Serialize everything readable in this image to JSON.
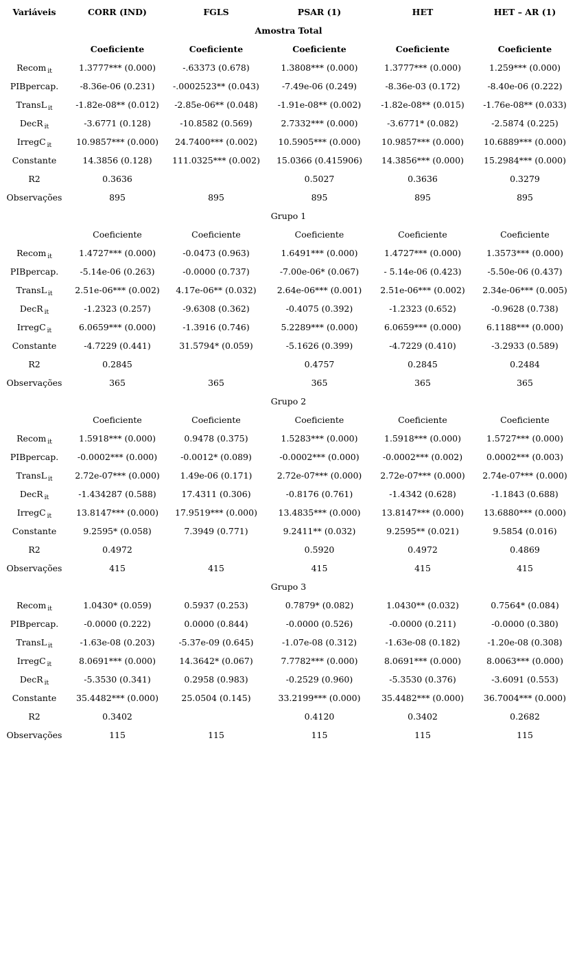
{
  "table": {
    "columns": [
      "Variáveis",
      "CORR (IND)",
      "FGLS",
      "PSAR (1)",
      "HET",
      "HET – AR (1)"
    ],
    "subheader_label": "Coeficiente",
    "sections": [
      {
        "title": "Amostra Total",
        "title_bold": true,
        "subheader": true,
        "subheader_bold": true,
        "rows": [
          {
            "label": "Recom",
            "sub": "it",
            "values": [
              "1.3777*** (0.000)",
              "-.63373 (0.678)",
              "1.3808*** (0.000)",
              "1.3777*** (0.000)",
              "1.259*** (0.000)"
            ]
          },
          {
            "label": "PIBpercap.",
            "sub": "",
            "values": [
              "-8.36e-06 (0.231)",
              "-.0002523** (0.043)",
              "-7.49e-06 (0.249)",
              "-8.36e-03 (0.172)",
              "-8.40e-06 (0.222)"
            ]
          },
          {
            "label": "TransL",
            "sub": "it",
            "values": [
              "-1.82e-08** (0.012)",
              "-2.85e-06** (0.048)",
              "-1.91e-08** (0.002)",
              "-1.82e-08** (0.015)",
              "-1.76e-08** (0.033)"
            ]
          },
          {
            "label": "DecR",
            "sub": "it",
            "values": [
              "-3.6771 (0.128)",
              "-10.8582 (0.569)",
              "2.7332*** (0.000)",
              "-3.6771* (0.082)",
              "-2.5874 (0.225)"
            ]
          },
          {
            "label": "IrregC",
            "sub": "it",
            "values": [
              "10.9857*** (0.000)",
              "24.7400*** (0.002)",
              "10.5905*** (0.000)",
              "10.9857*** (0.000)",
              "10.6889*** (0.000)"
            ]
          },
          {
            "label": "Constante",
            "sub": "",
            "values": [
              "14.3856 (0.128)",
              "111.0325*** (0.002)",
              "15.0366 (0.415906)",
              "14.3856*** (0.000)",
              "15.2984*** (0.000)"
            ]
          },
          {
            "label": "R2",
            "sub": "",
            "values": [
              "0.3636",
              "",
              "0.5027",
              "0.3636",
              "0.3279"
            ]
          },
          {
            "label": "Observações",
            "sub": "",
            "values": [
              "895",
              "895",
              "895",
              "895",
              "895"
            ]
          }
        ]
      },
      {
        "title": "Grupo 1",
        "title_bold": false,
        "subheader": true,
        "subheader_bold": false,
        "rows": [
          {
            "label": "Recom",
            "sub": "it",
            "values": [
              "1.4727*** (0.000)",
              "-0.0473 (0.963)",
              "1.6491*** (0.000)",
              "1.4727*** (0.000)",
              "1.3573*** (0.000)"
            ]
          },
          {
            "label": "PIBpercap.",
            "sub": "",
            "values": [
              "-5.14e-06 (0.263)",
              "-0.0000 (0.737)",
              "-7.00e-06* (0.067)",
              "- 5.14e-06 (0.423)",
              "-5.50e-06 (0.437)"
            ]
          },
          {
            "label": "TransL",
            "sub": "it",
            "values": [
              "2.51e-06*** (0.002)",
              "4.17e-06** (0.032)",
              "2.64e-06*** (0.001)",
              "2.51e-06*** (0.002)",
              "2.34e-06*** (0.005)"
            ]
          },
          {
            "label": "DecR",
            "sub": "it",
            "values": [
              "-1.2323 (0.257)",
              "-9.6308 (0.362)",
              "-0.4075 (0.392)",
              "-1.2323 (0.652)",
              "-0.9628 (0.738)"
            ]
          },
          {
            "label": "IrregC",
            "sub": "it",
            "values": [
              "6.0659*** (0.000)",
              "-1.3916 (0.746)",
              "5.2289*** (0.000)",
              "6.0659*** (0.000)",
              "6.1188*** (0.000)"
            ]
          },
          {
            "label": "Constante",
            "sub": "",
            "values": [
              "-4.7229 (0.441)",
              "31.5794* (0.059)",
              "-5.1626 (0.399)",
              "-4.7229 (0.410)",
              "-3.2933 (0.589)"
            ]
          },
          {
            "label": "R2",
            "sub": "",
            "values": [
              "0.2845",
              "",
              "0.4757",
              "0.2845",
              "0.2484"
            ]
          },
          {
            "label": "Observações",
            "sub": "",
            "values": [
              "365",
              "365",
              "365",
              "365",
              "365"
            ]
          }
        ]
      },
      {
        "title": "Grupo 2",
        "title_bold": false,
        "subheader": true,
        "subheader_bold": false,
        "rows": [
          {
            "label": "Recom",
            "sub": "it",
            "values": [
              "1.5918*** (0.000)",
              "0.9478 (0.375)",
              "1.5283*** (0.000)",
              "1.5918*** (0.000)",
              "1.5727*** (0.000)"
            ]
          },
          {
            "label": "PIBpercap.",
            "sub": "",
            "values": [
              "-0.0002*** (0.000)",
              "-0.0012* (0.089)",
              "-0.0002*** (0.000)",
              "-0.0002*** (0.002)",
              "0.0002*** (0.003)"
            ]
          },
          {
            "label": "TransL",
            "sub": "it",
            "values": [
              "2.72e-07*** (0.000)",
              "1.49e-06 (0.171)",
              "2.72e-07*** (0.000)",
              "2.72e-07*** (0.000)",
              "2.74e-07*** (0.000)"
            ]
          },
          {
            "label": "DecR",
            "sub": "it",
            "values": [
              "-1.434287 (0.588)",
              "17.4311 (0.306)",
              "-0.8176 (0.761)",
              "-1.4342 (0.628)",
              "-1.1843 (0.688)"
            ]
          },
          {
            "label": "IrregC",
            "sub": "it",
            "values": [
              "13.8147*** (0.000)",
              "17.9519*** (0.000)",
              "13.4835*** (0.000)",
              "13.8147*** (0.000)",
              "13.6880*** (0.000)"
            ]
          },
          {
            "label": "Constante",
            "sub": "",
            "values": [
              "9.2595* (0.058)",
              "7.3949 (0.771)",
              "9.2411** (0.032)",
              "9.2595** (0.021)",
              "9.5854 (0.016)"
            ]
          },
          {
            "label": "R2",
            "sub": "",
            "values": [
              "0.4972",
              "",
              "0.5920",
              "0.4972",
              "0.4869"
            ]
          },
          {
            "label": "Observações",
            "sub": "",
            "values": [
              "415",
              "415",
              "415",
              "415",
              "415"
            ]
          }
        ]
      },
      {
        "title": "Grupo 3",
        "title_bold": false,
        "subheader": false,
        "subheader_bold": false,
        "rows": [
          {
            "label": "Recom",
            "sub": "it",
            "values": [
              "1.0430* (0.059)",
              "0.5937 (0.253)",
              "0.7879* (0.082)",
              "1.0430** (0.032)",
              "0.7564* (0.084)"
            ]
          },
          {
            "label": "PIBpercap.",
            "sub": "",
            "values": [
              "-0.0000 (0.222)",
              "0.0000 (0.844)",
              "-0.0000 (0.526)",
              "-0.0000 (0.211)",
              "-0.0000 (0.380)"
            ]
          },
          {
            "label": "TransL",
            "sub": "it",
            "values": [
              "-1.63e-08 (0.203)",
              "-5.37e-09 (0.645)",
              "-1.07e-08 (0.312)",
              "-1.63e-08 (0.182)",
              "-1.20e-08 (0.308)"
            ]
          },
          {
            "label": "IrregC",
            "sub": "it",
            "values": [
              "8.0691*** (0.000)",
              "14.3642* (0.067)",
              "7.7782*** (0.000)",
              "8.0691*** (0.000)",
              "8.0063*** (0.000)"
            ]
          },
          {
            "label": "DecR",
            "sub": "it",
            "values": [
              "-5.3530 (0.341)",
              "0.2958 (0.983)",
              "-0.2529 (0.960)",
              "-5.3530 (0.376)",
              "-3.6091 (0.553)"
            ]
          },
          {
            "label": "Constante",
            "sub": "",
            "values": [
              "35.4482*** (0.000)",
              "25.0504 (0.145)",
              "33.2199*** (0.000)",
              "35.4482*** (0.000)",
              "36.7004*** (0.000)"
            ]
          },
          {
            "label": "R2",
            "sub": "",
            "values": [
              "0.3402",
              "",
              "0.4120",
              "0.3402",
              "0.2682"
            ]
          },
          {
            "label": "Observações",
            "sub": "",
            "values": [
              "115",
              "115",
              "115",
              "115",
              "115"
            ]
          }
        ]
      }
    ]
  }
}
